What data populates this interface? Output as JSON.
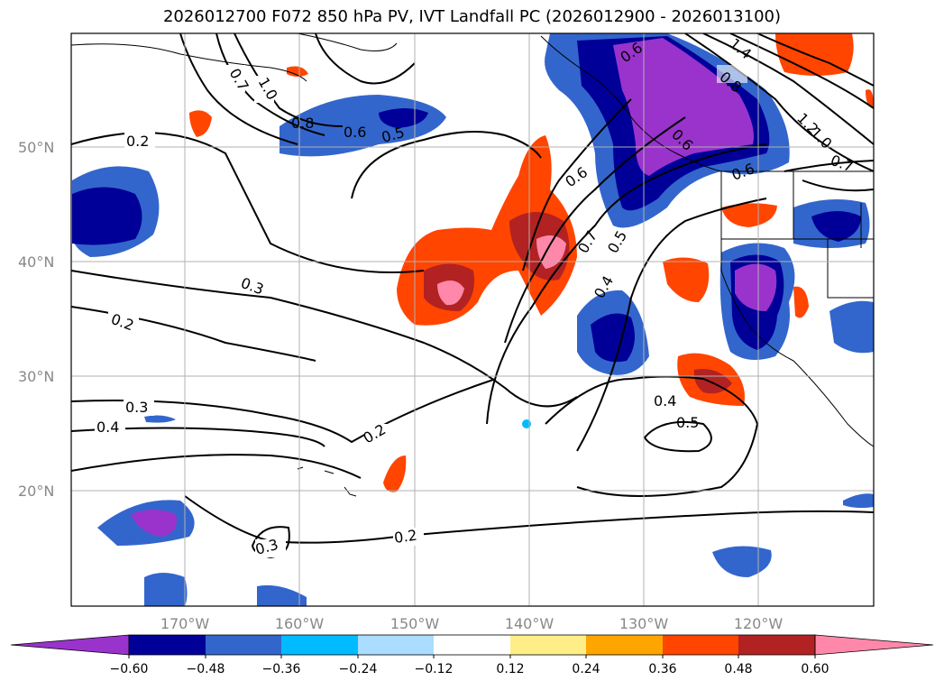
{
  "title": "2026012700 F072 850 hPa PV, IVT Landfall PC (2026012900 - 2026013100)",
  "lat_labels": [
    "50°N",
    "40°N",
    "30°N",
    "20°N"
  ],
  "lon_labels": [
    "170°W",
    "160°W",
    "150°W",
    "140°W",
    "130°W",
    "120°W"
  ],
  "colorbar": {
    "ticks": [
      "−0.60",
      "−0.48",
      "−0.36",
      "−0.24",
      "−0.12",
      "0.12",
      "0.24",
      "0.36",
      "0.48",
      "0.60"
    ],
    "colors": [
      "#9933cc",
      "#000099",
      "#3366cc",
      "#00bbff",
      "#aaddff",
      "#ffffff",
      "#ffee88",
      "#ffa500",
      "#ff4500",
      "#b22222",
      "#ff88aa"
    ]
  },
  "contour_labels": [
    "0.2",
    "0.3",
    "0.2",
    "0.3",
    "0.4",
    "0.3",
    "0.2",
    "0.2",
    "0.8",
    "0.6",
    "0.5",
    "0.7",
    "1.0",
    "0.6",
    "0.7",
    "0.5",
    "0.4",
    "0.4",
    "0.5",
    "0.6",
    "0.6",
    "0.8",
    "1.4",
    "1.2",
    "1.0",
    "0.7",
    "0.6"
  ]
}
